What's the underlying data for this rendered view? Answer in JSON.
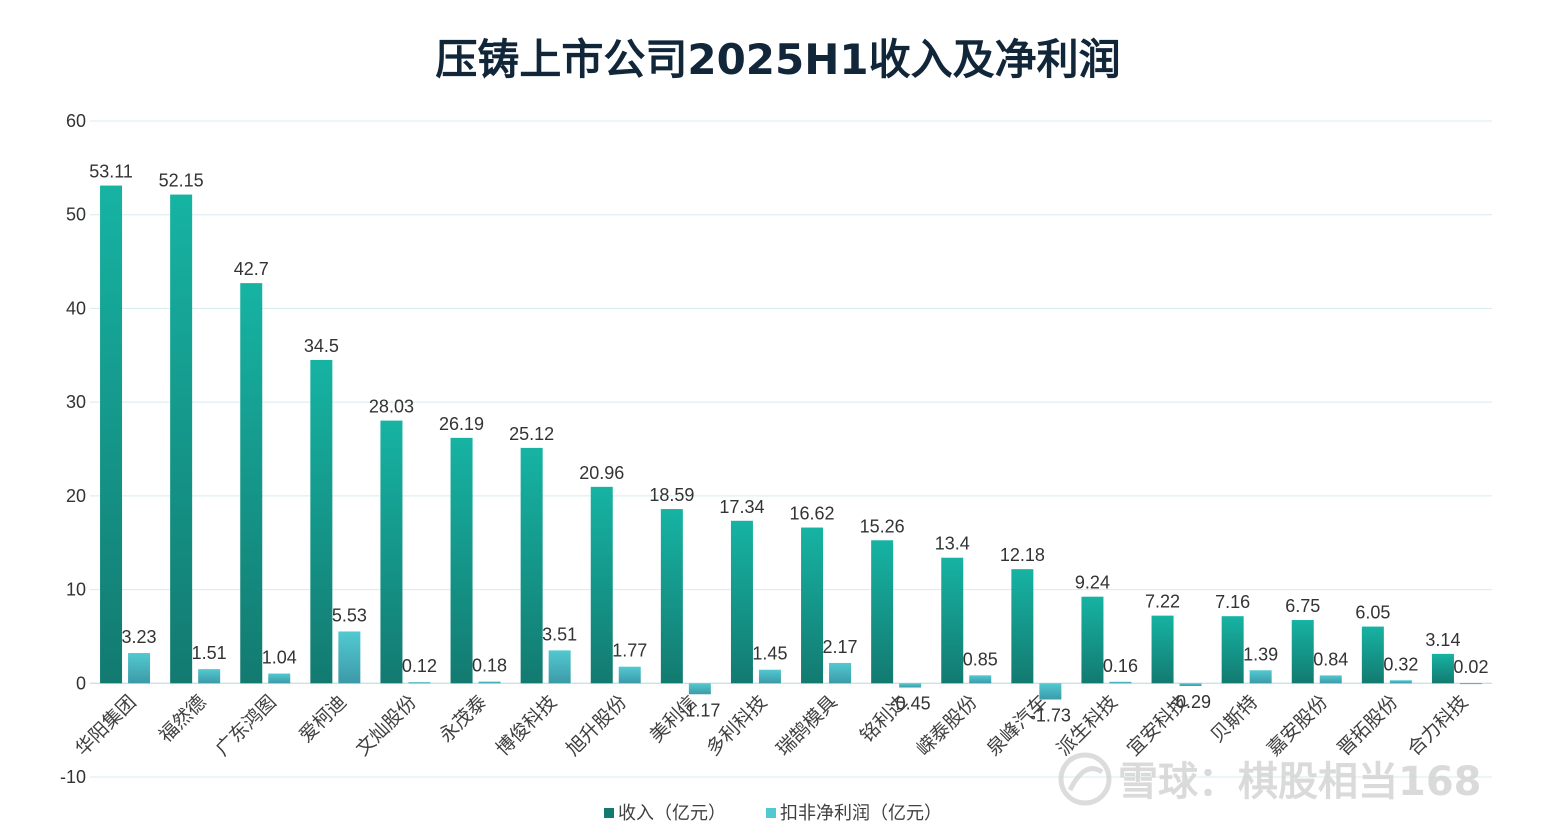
{
  "chart_data": {
    "type": "bar",
    "title": "压铸上市公司2025H1收入及净利润",
    "categories": [
      "华阳集团",
      "福然德",
      "广东鸿图",
      "爱柯迪",
      "文灿股份",
      "永茂泰",
      "博俊科技",
      "旭升股份",
      "美利信",
      "多利科技",
      "瑞鹄模具",
      "铭利达",
      "嵘泰股份",
      "泉峰汽车",
      "派生科技",
      "宜安科技",
      "贝斯特",
      "嘉安股份",
      "晋拓股份",
      "合力科技"
    ],
    "series": [
      {
        "name": "收入（亿元）",
        "values": [
          53.11,
          52.15,
          42.7,
          34.5,
          28.03,
          26.19,
          25.12,
          20.96,
          18.59,
          17.34,
          16.62,
          15.26,
          13.4,
          12.18,
          9.24,
          7.22,
          7.16,
          6.75,
          6.05,
          3.14
        ]
      },
      {
        "name": "扣非净利润（亿元）",
        "values": [
          3.23,
          1.51,
          1.04,
          5.53,
          0.12,
          0.18,
          3.51,
          1.77,
          -1.17,
          1.45,
          2.17,
          -0.45,
          0.85,
          -1.73,
          0.16,
          -0.29,
          1.39,
          0.84,
          0.32,
          0.02
        ]
      }
    ],
    "value_labels": {
      "revenue": [
        "53.11",
        "52.15",
        "42.7",
        "34.5",
        "28.03",
        "26.19",
        "25.12",
        "20.96",
        "18.59",
        "17.34",
        "16.62",
        "15.26",
        "13.4",
        "12.18",
        "9.24",
        "7.22",
        "7.16",
        "6.75",
        "6.05",
        "3.14"
      ],
      "profit": [
        "3.23",
        "1.51",
        "1.04",
        "5.53",
        "0.12",
        "0.18",
        "3.51",
        "1.77",
        "-1.17",
        "1.45",
        "2.17",
        "-0.45",
        "0.85",
        "-1.73",
        "0.16",
        "-0.29",
        "1.39",
        "0.84",
        "0.32",
        "0.02"
      ]
    },
    "yticks": [
      60,
      50,
      40,
      30,
      20,
      10,
      0,
      -10
    ],
    "ylim": [
      -10,
      60
    ],
    "grid": true,
    "legend_position": "bottom-center",
    "colors": {
      "revenue_top": "#16b3a3",
      "revenue_bottom": "#137a70",
      "profit_top": "#52c9d1",
      "profit_bottom": "#3c9aa8",
      "grid": "#d5ecef",
      "title": "#12263a"
    }
  },
  "watermark": {
    "icon": "snowball-logo-icon",
    "text": "雪球：棋股相当168"
  }
}
